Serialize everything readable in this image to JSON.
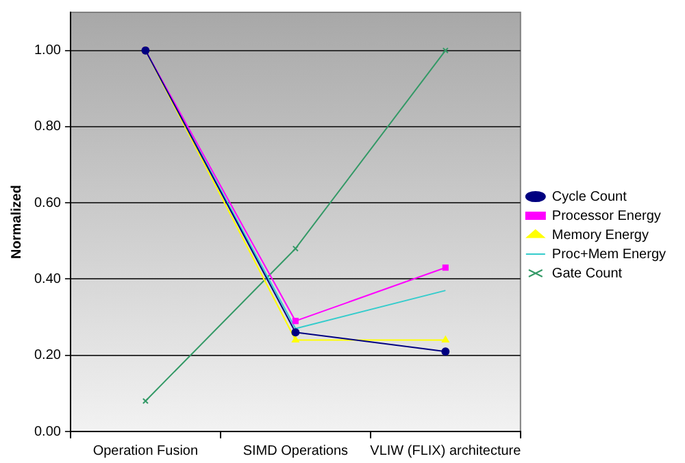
{
  "chart_data": {
    "type": "line",
    "ylabel": "Normalized",
    "categories": [
      "Operation Fusion",
      "SIMD Operations",
      "VLIW (FLIX) architecture"
    ],
    "series": [
      {
        "name": "Cycle Count",
        "color": "#000080",
        "marker": "circle",
        "values": [
          1.0,
          0.26,
          0.21
        ]
      },
      {
        "name": "Processor Energy",
        "color": "#ff00ff",
        "marker": "square",
        "values": [
          1.0,
          0.29,
          0.43
        ]
      },
      {
        "name": "Memory Energy",
        "color": "#ffff00",
        "marker": "triangle",
        "values": [
          1.0,
          0.24,
          0.24
        ]
      },
      {
        "name": "Proc+Mem Energy",
        "color": "#33cccc",
        "marker": "none",
        "values": [
          1.0,
          0.27,
          0.37
        ]
      },
      {
        "name": "Gate Count",
        "color": "#339966",
        "marker": "cross",
        "values": [
          0.08,
          0.48,
          1.0
        ]
      }
    ],
    "ylim": [
      0,
      1.1
    ],
    "yticks": [
      {
        "value": 0,
        "label": "0.00"
      },
      {
        "value": 0.2,
        "label": "0.20"
      },
      {
        "value": 0.4,
        "label": "0.40"
      },
      {
        "value": 0.6,
        "label": "0.60"
      },
      {
        "value": 0.8,
        "label": "0.80"
      },
      {
        "value": 1.0,
        "label": "1.00"
      }
    ],
    "grid": "y",
    "legend": "right",
    "line_style": "solid"
  }
}
